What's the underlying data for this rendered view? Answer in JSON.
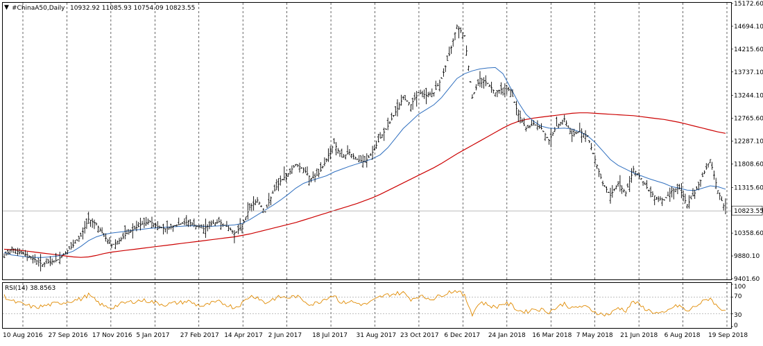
{
  "header": {
    "symbol_label": "#ChinaA50,Daily",
    "ohlc_label": "10932.92 11085.93 10754.09 10823.55"
  },
  "rsi": {
    "label": "RSI(14) 38.8563",
    "levels": [
      "100",
      "70",
      "30",
      "0"
    ]
  },
  "colors": {
    "price_bars": "#000000",
    "ma_fast": "#2f6fbf",
    "ma_slow": "#cc0000",
    "rsi_line": "#e08a00",
    "current_price_line": "#b0b0b0",
    "grid": "#000000"
  },
  "chart_data": {
    "type": "line",
    "title": "#ChinaA50,Daily",
    "price_axis_ticks": [
      15172.6,
      14694.1,
      14215.6,
      13737.1,
      13244.1,
      12765.6,
      12287.1,
      11808.6,
      11315.6,
      10838.6,
      10358.6,
      9880.1,
      9401.6
    ],
    "price_axis_labels": [
      "15172.60",
      "14694.10",
      "14215.60",
      "13737.10",
      "13244.10",
      "12765.60",
      "12287.10",
      "11808.60",
      "11315.60",
      "10838.60",
      "10358.60",
      "9880.10",
      "9401.60"
    ],
    "current_price": 10823.55,
    "current_price_label": "10823.55",
    "ylim": [
      9401.6,
      15172.6
    ],
    "x_labels": [
      "10 Aug 2016",
      "27 Sep 2016",
      "17 Nov 2016",
      "5 Jan 2017",
      "27 Feb 2017",
      "14 Apr 2017",
      "2 Jun 2017",
      "18 Jul 2017",
      "31 Aug 2017",
      "23 Oct 2017",
      "6 Dec 2017",
      "24 Jan 2018",
      "16 Mar 2018",
      "7 May 2018",
      "21 Jun 2018",
      "6 Aug 2018",
      "19 Sep 2018"
    ],
    "grid": true,
    "series": [
      {
        "role": "price_close",
        "values": [
          9850,
          10050,
          9950,
          9900,
          9800,
          9700,
          9750,
          9800,
          9950,
          10100,
          10300,
          10650,
          10550,
          10300,
          10100,
          10200,
          10350,
          10450,
          10550,
          10600,
          10500,
          10450,
          10500,
          10550,
          10600,
          10500,
          10450,
          10550,
          10600,
          10500,
          10350,
          10500,
          10900,
          11050,
          10800,
          11200,
          11450,
          11600,
          11800,
          11700,
          11500,
          11600,
          11900,
          12250,
          11950,
          12050,
          11900,
          11850,
          12050,
          12350,
          12600,
          12900,
          13200,
          13050,
          13300,
          13250,
          13300,
          13600,
          14100,
          14700,
          14500,
          13200,
          13600,
          13500,
          13300,
          13400,
          13350,
          12850,
          12550,
          12650,
          12550,
          12300,
          12600,
          12750,
          12400,
          12500,
          12400,
          11900,
          11400,
          11150,
          11400,
          11200,
          11700,
          11500,
          11250,
          11100,
          11050,
          11250,
          11300,
          10950,
          11200,
          11550,
          11900,
          11250,
          10823.55
        ]
      },
      {
        "role": "moving_average_fast",
        "values": [
          9950,
          9900,
          9880,
          9860,
          9850,
          9850,
          9860,
          9880,
          9920,
          9980,
          10080,
          10200,
          10280,
          10330,
          10360,
          10380,
          10400,
          10420,
          10440,
          10460,
          10470,
          10480,
          10490,
          10500,
          10510,
          10510,
          10500,
          10500,
          10510,
          10520,
          10530,
          10560,
          10640,
          10740,
          10840,
          10940,
          11050,
          11170,
          11300,
          11400,
          11460,
          11510,
          11560,
          11640,
          11700,
          11760,
          11810,
          11860,
          11920,
          12000,
          12150,
          12350,
          12550,
          12700,
          12850,
          12950,
          13050,
          13200,
          13400,
          13600,
          13700,
          13760,
          13800,
          13820,
          13830,
          13700,
          13400,
          13100,
          12850,
          12700,
          12600,
          12560,
          12550,
          12560,
          12540,
          12480,
          12400,
          12260,
          12080,
          11900,
          11780,
          11700,
          11620,
          11560,
          11500,
          11450,
          11400,
          11330,
          11300,
          11260,
          11250,
          11300,
          11350,
          11330,
          11280
        ]
      },
      {
        "role": "moving_average_slow",
        "values": [
          10020,
          10010,
          10000,
          9980,
          9960,
          9940,
          9920,
          9900,
          9880,
          9860,
          9850,
          9860,
          9890,
          9930,
          9960,
          9980,
          10000,
          10020,
          10040,
          10060,
          10080,
          10100,
          10120,
          10140,
          10160,
          10180,
          10200,
          10220,
          10240,
          10260,
          10280,
          10310,
          10340,
          10380,
          10420,
          10460,
          10500,
          10540,
          10580,
          10630,
          10680,
          10730,
          10780,
          10830,
          10880,
          10930,
          10980,
          11040,
          11100,
          11170,
          11250,
          11330,
          11410,
          11490,
          11570,
          11650,
          11730,
          11820,
          11920,
          12020,
          12110,
          12200,
          12290,
          12380,
          12470,
          12560,
          12640,
          12700,
          12740,
          12770,
          12790,
          12810,
          12830,
          12850,
          12870,
          12880,
          12880,
          12870,
          12860,
          12850,
          12840,
          12830,
          12820,
          12800,
          12780,
          12760,
          12740,
          12710,
          12680,
          12640,
          12600,
          12560,
          12520,
          12480,
          12450
        ]
      }
    ],
    "rsi_series": [
      72,
      60,
      55,
      50,
      45,
      48,
      52,
      55,
      58,
      62,
      65,
      75,
      60,
      48,
      45,
      52,
      57,
      60,
      62,
      60,
      55,
      52,
      55,
      57,
      60,
      52,
      48,
      55,
      58,
      52,
      45,
      55,
      72,
      70,
      55,
      65,
      70,
      68,
      72,
      62,
      52,
      58,
      68,
      75,
      55,
      60,
      55,
      52,
      60,
      70,
      75,
      78,
      80,
      65,
      72,
      68,
      66,
      75,
      82,
      85,
      72,
      30,
      58,
      52,
      45,
      55,
      52,
      38,
      35,
      42,
      40,
      35,
      45,
      55,
      42,
      48,
      45,
      35,
      28,
      30,
      45,
      38,
      60,
      48,
      38,
      32,
      30,
      45,
      50,
      35,
      48,
      58,
      68,
      45,
      38.8563
    ],
    "rsi_ylim": [
      0,
      100
    ]
  }
}
